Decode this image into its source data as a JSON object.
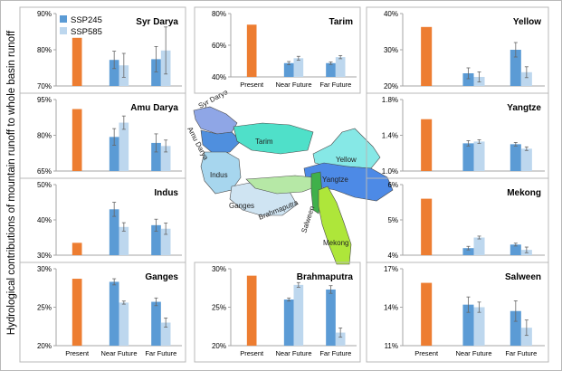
{
  "y_axis_label": "Hydrological contributions of mountain runoff to whole basin runoff",
  "map_labels": [
    "Syr Darya",
    "Amu Darya",
    "Tarim",
    "Indus",
    "Ganges",
    "Brahmaputra",
    "Yangtze",
    "Yellow",
    "Salween",
    "Mekong"
  ],
  "colors": {
    "present": "#ed7d31",
    "ssp245": "#5b9bd5",
    "ssp585": "#bdd7ee",
    "frame": "#b8b8b8",
    "axis": "#a6a6a6"
  },
  "chart_data": [
    {
      "type": "bar",
      "title": "Syr Darya",
      "categories": [
        "Present",
        "Near Future",
        "Far Future"
      ],
      "series": [
        {
          "name": "Present",
          "values": [
            83.3,
            null,
            null
          ],
          "errors": [
            null,
            null,
            null
          ]
        },
        {
          "name": "SSP245",
          "values": [
            null,
            77.2,
            77.4
          ],
          "errors": [
            null,
            2.4,
            3.5
          ]
        },
        {
          "name": "SSP585",
          "values": [
            null,
            75.7,
            79.8
          ],
          "errors": [
            null,
            3.3,
            6.5
          ]
        }
      ],
      "yticks": [
        "90%",
        "80%",
        "70%"
      ],
      "ylim": [
        70,
        90
      ],
      "legend": [
        "SSP245",
        "SSP585"
      ],
      "show_xticks": false
    },
    {
      "type": "bar",
      "title": "Tarim",
      "categories": [
        "Present",
        "Near Future",
        "Far Future"
      ],
      "series": [
        {
          "name": "Present",
          "values": [
            73.0,
            null,
            null
          ],
          "errors": [
            null,
            null,
            null
          ]
        },
        {
          "name": "SSP245",
          "values": [
            null,
            48.7,
            48.7
          ],
          "errors": [
            null,
            1.0,
            0.8
          ]
        },
        {
          "name": "SSP585",
          "values": [
            null,
            51.8,
            52.5
          ],
          "errors": [
            null,
            1.2,
            1.0
          ]
        }
      ],
      "yticks": [
        "80%",
        "60%",
        "40%"
      ],
      "ylim": [
        40,
        80
      ],
      "show_xticks": true
    },
    {
      "type": "bar",
      "title": "Yellow",
      "categories": [
        "Present",
        "Near Future",
        "Far Future"
      ],
      "series": [
        {
          "name": "Present",
          "values": [
            36.3,
            null,
            null
          ],
          "errors": [
            null,
            null,
            null
          ]
        },
        {
          "name": "SSP245",
          "values": [
            null,
            23.5,
            30.0
          ],
          "errors": [
            null,
            1.5,
            2.0
          ]
        },
        {
          "name": "SSP585",
          "values": [
            null,
            22.5,
            23.8
          ],
          "errors": [
            null,
            1.4,
            1.5
          ]
        }
      ],
      "yticks": [
        "40%",
        "30%",
        "20%"
      ],
      "ylim": [
        20,
        40
      ],
      "show_xticks": false
    },
    {
      "type": "bar",
      "title": "Amu Darya",
      "categories": [
        "Present",
        "Near Future",
        "Far Future"
      ],
      "series": [
        {
          "name": "Present",
          "values": [
            91.0,
            null,
            null
          ],
          "errors": [
            null,
            null,
            null
          ]
        },
        {
          "name": "SSP245",
          "values": [
            null,
            79.3,
            76.8
          ],
          "errors": [
            null,
            3.5,
            3.8
          ]
        },
        {
          "name": "SSP585",
          "values": [
            null,
            85.3,
            75.5
          ],
          "errors": [
            null,
            2.8,
            2.5
          ]
        }
      ],
      "yticks": [
        "95%",
        "80%",
        "65%"
      ],
      "ylim": [
        65,
        95
      ],
      "show_xticks": false
    },
    {
      "type": "bar",
      "title": "Yangtze",
      "categories": [
        "Present",
        "Near Future",
        "Far Future"
      ],
      "series": [
        {
          "name": "Present",
          "values": [
            1.58,
            null,
            null
          ],
          "errors": [
            null,
            null,
            null
          ]
        },
        {
          "name": "SSP245",
          "values": [
            null,
            1.31,
            1.3
          ],
          "errors": [
            null,
            0.03,
            0.02
          ]
        },
        {
          "name": "SSP585",
          "values": [
            null,
            1.33,
            1.25
          ],
          "errors": [
            null,
            0.02,
            0.02
          ]
        }
      ],
      "yticks": [
        "1.8%",
        "1.4%",
        "1.0%"
      ],
      "ylim": [
        1.0,
        1.8
      ],
      "show_xticks": false
    },
    {
      "type": "bar",
      "title": "Indus",
      "categories": [
        "Present",
        "Near Future",
        "Far Future"
      ],
      "series": [
        {
          "name": "Present",
          "values": [
            33.5,
            null,
            null
          ],
          "errors": [
            null,
            null,
            null
          ]
        },
        {
          "name": "SSP245",
          "values": [
            null,
            43.0,
            38.5
          ],
          "errors": [
            null,
            2.0,
            1.7
          ]
        },
        {
          "name": "SSP585",
          "values": [
            null,
            38.0,
            37.5
          ],
          "errors": [
            null,
            1.2,
            1.6
          ]
        }
      ],
      "yticks": [
        "50%",
        "40%",
        "30%"
      ],
      "ylim": [
        30,
        50
      ],
      "show_xticks": false
    },
    {
      "type": "bar",
      "title": "Mekong",
      "categories": [
        "Present",
        "Near Future",
        "Far Future"
      ],
      "series": [
        {
          "name": "Present",
          "values": [
            5.6,
            null,
            null
          ],
          "errors": [
            null,
            null,
            null
          ]
        },
        {
          "name": "SSP245",
          "values": [
            null,
            4.2,
            4.3
          ],
          "errors": [
            null,
            0.05,
            0.04
          ]
        },
        {
          "name": "SSP585",
          "values": [
            null,
            4.5,
            4.15
          ],
          "errors": [
            null,
            0.04,
            0.08
          ]
        }
      ],
      "yticks": [
        "6%",
        "5%",
        "4%"
      ],
      "ylim": [
        4,
        6
      ],
      "show_xticks": false
    },
    {
      "type": "bar",
      "title": "Ganges",
      "categories": [
        "Present",
        "Near Future",
        "Far Future"
      ],
      "series": [
        {
          "name": "Present",
          "values": [
            28.7,
            null,
            null
          ],
          "errors": [
            null,
            null,
            null
          ]
        },
        {
          "name": "SSP245",
          "values": [
            null,
            28.3,
            25.7
          ],
          "errors": [
            null,
            0.4,
            0.5
          ]
        },
        {
          "name": "SSP585",
          "values": [
            null,
            25.6,
            23.0
          ],
          "errors": [
            null,
            0.2,
            0.6
          ]
        }
      ],
      "yticks": [
        "30%",
        "25%",
        "20%"
      ],
      "ylim": [
        20,
        30
      ],
      "show_xticks": true
    },
    {
      "type": "bar",
      "title": "Brahmaputra",
      "categories": [
        "Present",
        "Near Future",
        "Far Future"
      ],
      "series": [
        {
          "name": "Present",
          "values": [
            29.1,
            null,
            null
          ],
          "errors": [
            null,
            null,
            null
          ]
        },
        {
          "name": "SSP245",
          "values": [
            null,
            26.0,
            27.3
          ],
          "errors": [
            null,
            0.2,
            0.5
          ]
        },
        {
          "name": "SSP585",
          "values": [
            null,
            27.9,
            21.7
          ],
          "errors": [
            null,
            0.3,
            0.6
          ]
        }
      ],
      "yticks": [
        "30%",
        "25%",
        "20%"
      ],
      "ylim": [
        20,
        30
      ],
      "show_xticks": true
    },
    {
      "type": "bar",
      "title": "Salween",
      "categories": [
        "Present",
        "Near Future",
        "Far Future"
      ],
      "series": [
        {
          "name": "Present",
          "values": [
            15.9,
            null,
            null
          ],
          "errors": [
            null,
            null,
            null
          ]
        },
        {
          "name": "SSP245",
          "values": [
            null,
            14.2,
            13.7
          ],
          "errors": [
            null,
            0.6,
            0.8
          ]
        },
        {
          "name": "SSP585",
          "values": [
            null,
            14.0,
            12.4
          ],
          "errors": [
            null,
            0.4,
            0.6
          ]
        }
      ],
      "yticks": [
        "17%",
        "14%",
        "11%"
      ],
      "ylim": [
        11,
        17
      ],
      "show_xticks": true
    }
  ]
}
